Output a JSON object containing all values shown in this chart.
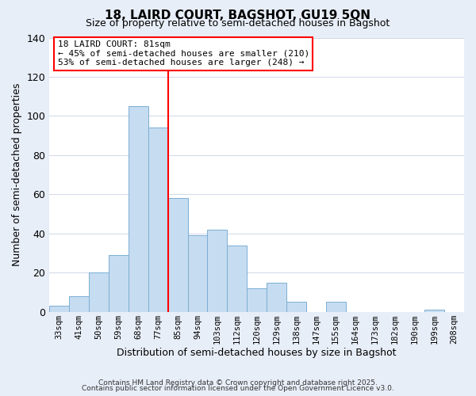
{
  "title": "18, LAIRD COURT, BAGSHOT, GU19 5QN",
  "subtitle": "Size of property relative to semi-detached houses in Bagshot",
  "xlabel": "Distribution of semi-detached houses by size in Bagshot",
  "ylabel": "Number of semi-detached properties",
  "bar_labels": [
    "33sqm",
    "41sqm",
    "50sqm",
    "59sqm",
    "68sqm",
    "77sqm",
    "85sqm",
    "94sqm",
    "103sqm",
    "112sqm",
    "120sqm",
    "129sqm",
    "138sqm",
    "147sqm",
    "155sqm",
    "164sqm",
    "173sqm",
    "182sqm",
    "190sqm",
    "199sqm",
    "208sqm"
  ],
  "bar_values": [
    3,
    8,
    20,
    29,
    105,
    94,
    58,
    39,
    42,
    34,
    12,
    15,
    5,
    0,
    5,
    0,
    0,
    0,
    0,
    1,
    0
  ],
  "bar_color": "#c6dcf0",
  "bar_edge_color": "#7bafd4",
  "vline_x": 5.5,
  "vline_color": "red",
  "annotation_title": "18 LAIRD COURT: 81sqm",
  "annotation_line1": "← 45% of semi-detached houses are smaller (210)",
  "annotation_line2": "53% of semi-detached houses are larger (248) →",
  "annotation_box_color": "red",
  "ylim": [
    0,
    140
  ],
  "yticks": [
    0,
    20,
    40,
    60,
    80,
    100,
    120,
    140
  ],
  "footer1": "Contains HM Land Registry data © Crown copyright and database right 2025.",
  "footer2": "Contains public sector information licensed under the Open Government Licence v3.0.",
  "bg_color": "#e8eef8",
  "plot_bg_color": "#ffffff"
}
